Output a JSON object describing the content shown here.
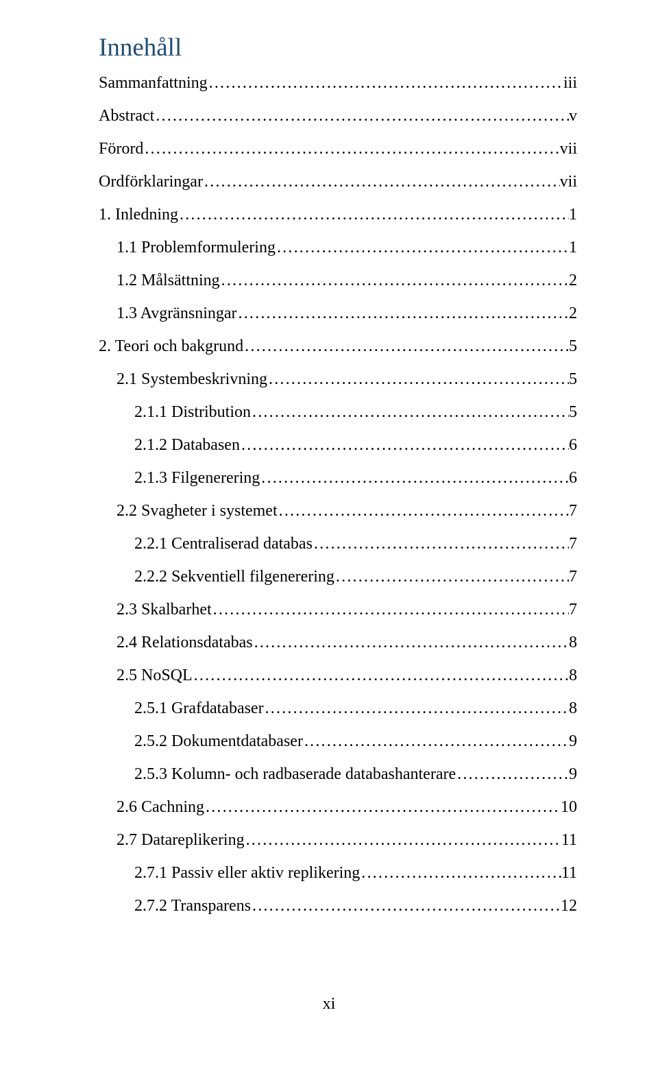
{
  "heading": "Innehåll",
  "heading_color": "#1f4e79",
  "body_font_size": 24,
  "page_number": "xi",
  "toc": [
    {
      "level": 0,
      "label": "Sammanfattning",
      "page": "iii"
    },
    {
      "level": 0,
      "label": "Abstract",
      "page": "v"
    },
    {
      "level": 0,
      "label": "Förord",
      "page": "vii"
    },
    {
      "level": 0,
      "label": "Ordförklaringar",
      "page": "vii"
    },
    {
      "level": 0,
      "label": "1. Inledning",
      "page": "1"
    },
    {
      "level": 1,
      "label": "1.1 Problemformulering",
      "page": "1"
    },
    {
      "level": 1,
      "label": "1.2 Målsättning",
      "page": "2"
    },
    {
      "level": 1,
      "label": "1.3 Avgränsningar",
      "page": "2"
    },
    {
      "level": 0,
      "label": "2. Teori och bakgrund",
      "page": "5"
    },
    {
      "level": 1,
      "label": "2.1 Systembeskrivning",
      "page": "5"
    },
    {
      "level": 2,
      "label": "2.1.1 Distribution",
      "page": "5"
    },
    {
      "level": 2,
      "label": "2.1.2 Databasen",
      "page": "6"
    },
    {
      "level": 2,
      "label": "2.1.3 Filgenerering",
      "page": "6"
    },
    {
      "level": 1,
      "label": "2.2 Svagheter i systemet",
      "page": "7"
    },
    {
      "level": 2,
      "label": "2.2.1 Centraliserad databas",
      "page": "7"
    },
    {
      "level": 2,
      "label": "2.2.2 Sekventiell filgenerering",
      "page": "7"
    },
    {
      "level": 1,
      "label": "2.3 Skalbarhet",
      "page": "7"
    },
    {
      "level": 1,
      "label": "2.4 Relationsdatabas",
      "page": "8"
    },
    {
      "level": 1,
      "label": "2.5 NoSQL",
      "page": "8"
    },
    {
      "level": 2,
      "label": "2.5.1 Grafdatabaser",
      "page": "8"
    },
    {
      "level": 2,
      "label": "2.5.2 Dokumentdatabaser",
      "page": "9"
    },
    {
      "level": 2,
      "label": "2.5.3 Kolumn- och radbaserade databashanterare",
      "page": "9"
    },
    {
      "level": 1,
      "label": "2.6 Cachning",
      "page": "10"
    },
    {
      "level": 1,
      "label": "2.7 Datareplikering",
      "page": "11"
    },
    {
      "level": 2,
      "label": "2.7.1 Passiv eller aktiv replikering",
      "page": "11"
    },
    {
      "level": 2,
      "label": "2.7.2 Transparens",
      "page": "12"
    }
  ]
}
